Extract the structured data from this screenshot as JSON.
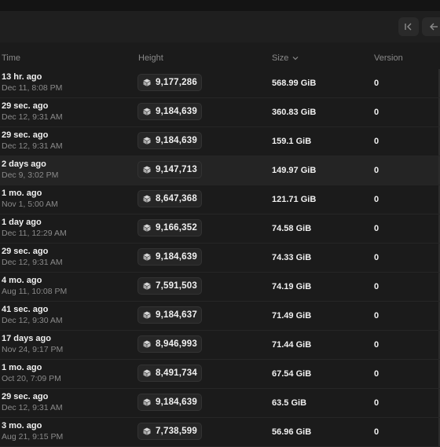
{
  "table": {
    "headers": {
      "time": "Time",
      "height": "Height",
      "size": "Size",
      "version": "Version"
    },
    "rows": [
      {
        "time_ago": "13 hr. ago",
        "timestamp": "Dec 11, 8:08 PM",
        "height": "9,177,286",
        "size": "568.99 GiB",
        "version": "0"
      },
      {
        "time_ago": "29 sec. ago",
        "timestamp": "Dec 12, 9:31 AM",
        "height": "9,184,639",
        "size": "360.83 GiB",
        "version": "0"
      },
      {
        "time_ago": "29 sec. ago",
        "timestamp": "Dec 12, 9:31 AM",
        "height": "9,184,639",
        "size": "159.1 GiB",
        "version": "0"
      },
      {
        "time_ago": "2 days ago",
        "timestamp": "Dec 9, 3:02 PM",
        "height": "9,147,713",
        "size": "149.97 GiB",
        "version": "0"
      },
      {
        "time_ago": "1 mo. ago",
        "timestamp": "Nov 1, 5:00 AM",
        "height": "8,647,368",
        "size": "121.71 GiB",
        "version": "0"
      },
      {
        "time_ago": "1 day ago",
        "timestamp": "Dec 11, 12:29 AM",
        "height": "9,166,352",
        "size": "74.58 GiB",
        "version": "0"
      },
      {
        "time_ago": "29 sec. ago",
        "timestamp": "Dec 12, 9:31 AM",
        "height": "9,184,639",
        "size": "74.33 GiB",
        "version": "0"
      },
      {
        "time_ago": "4 mo. ago",
        "timestamp": "Aug 11, 10:08 PM",
        "height": "7,591,503",
        "size": "74.19 GiB",
        "version": "0"
      },
      {
        "time_ago": "41 sec. ago",
        "timestamp": "Dec 12, 9:30 AM",
        "height": "9,184,637",
        "size": "71.49 GiB",
        "version": "0"
      },
      {
        "time_ago": "17 days ago",
        "timestamp": "Nov 24, 9:17 PM",
        "height": "8,946,993",
        "size": "71.44 GiB",
        "version": "0"
      },
      {
        "time_ago": "1 mo. ago",
        "timestamp": "Oct 20, 7:09 PM",
        "height": "8,491,734",
        "size": "67.54 GiB",
        "version": "0"
      },
      {
        "time_ago": "29 sec. ago",
        "timestamp": "Dec 12, 9:31 AM",
        "height": "9,184,639",
        "size": "63.5 GiB",
        "version": "0"
      },
      {
        "time_ago": "3 mo. ago",
        "timestamp": "Aug 21, 9:15 PM",
        "height": "7,738,599",
        "size": "56.96 GiB",
        "version": "0"
      }
    ],
    "highlighted_row": 3
  },
  "icons": {
    "first_page": "first-page-icon",
    "prev_page": "arrow-left-icon",
    "sort": "chevron-down-icon",
    "block": "cube-icon"
  },
  "colors": {
    "background": "#1b1b1b",
    "text": "#f0f0f0",
    "muted": "#8a8a8a",
    "pill": "#262626"
  }
}
